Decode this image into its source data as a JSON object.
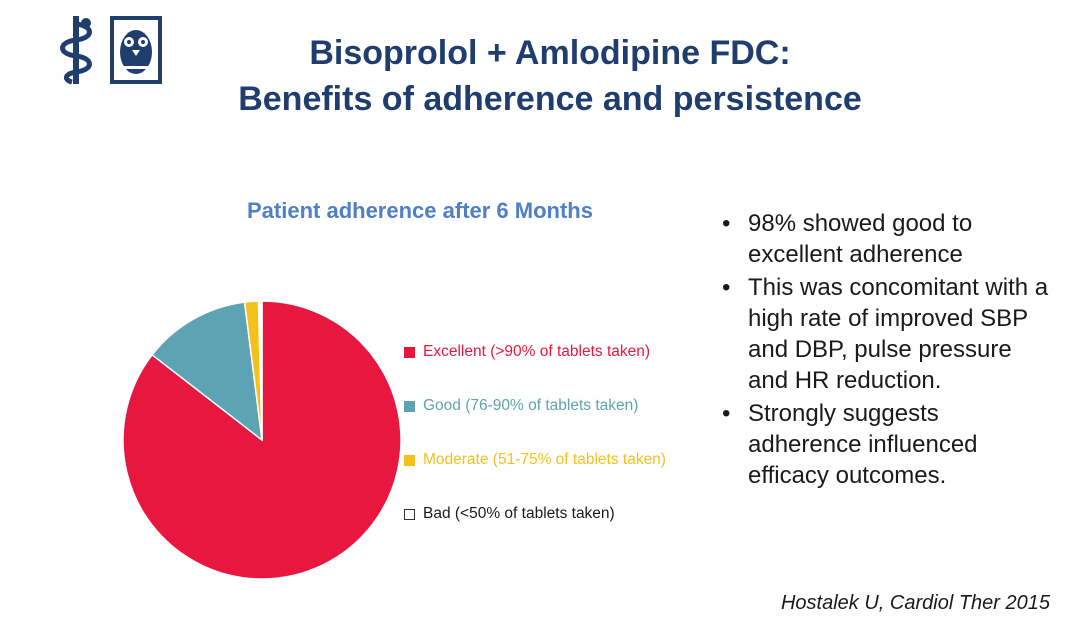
{
  "slide": {
    "title_line1": "Bisoprolol + Amlodipine FDC:",
    "title_line2": "Benefits of adherence and persistence",
    "logo_left_icon": "staff-of-aesculapius-icon",
    "logo_right_icon": "university-seal-owl-icon",
    "accent_color": "#1f3e6e",
    "bullet_symbol": "•",
    "bullets": [
      "98% showed good to excellent adherence",
      "This was concomitant with a high rate of improved SBP and DBP, pulse pressure and HR  reduction.",
      "Strongly suggests adherence influenced efficacy outcomes."
    ],
    "citation": "Hostalek U, Cardiol Ther 2015"
  },
  "chart_data": {
    "type": "pie",
    "title": "Patient adherence after 6 Months",
    "legend_position": "right",
    "slices": [
      {
        "label": "Excellent (>90% of tablets taken)",
        "value": 85.5,
        "color": "#e8173f"
      },
      {
        "label": "Good (76-90% of tablets taken)",
        "value": 12.5,
        "color": "#5ea3b3"
      },
      {
        "label": "Moderate (51-75% of tablets taken)",
        "value": 1.6,
        "color": "#f4c11b"
      },
      {
        "label": "Bad (<50% of tablets taken)",
        "value": 0.4,
        "color": "#ffffff"
      }
    ]
  }
}
